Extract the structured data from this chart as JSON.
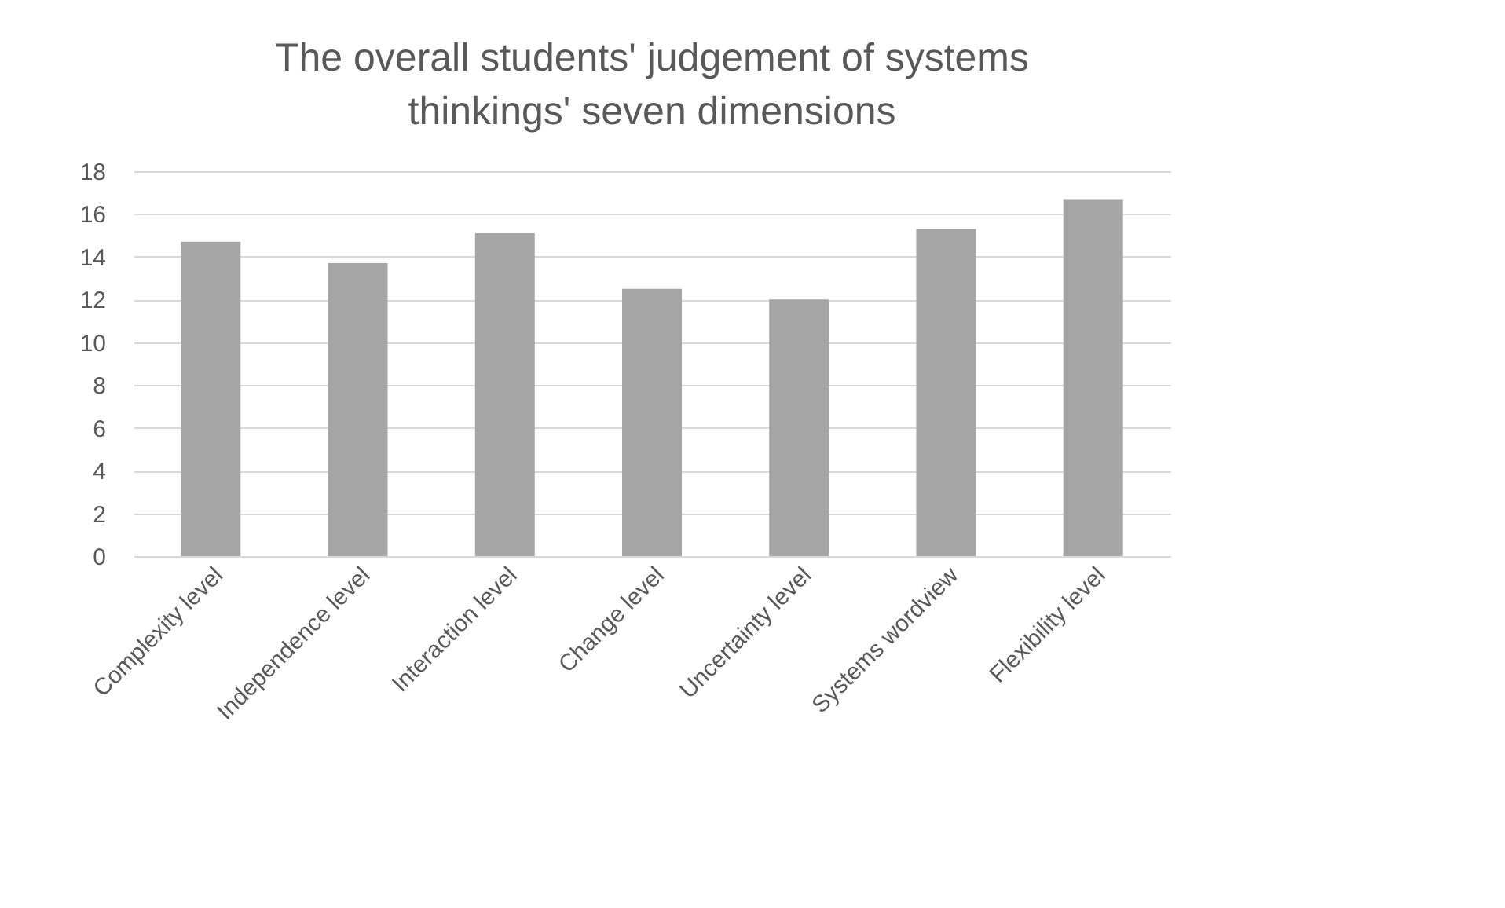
{
  "chart_data": {
    "type": "bar",
    "title": "The overall students' judgement of systems thinkings' seven dimensions",
    "categories": [
      "Complexity level",
      "Independence level",
      "Interaction level",
      "Change level",
      "Uncertainty level",
      "Systems wordview",
      "Flexibility level"
    ],
    "values": [
      14.7,
      13.7,
      15.1,
      12.5,
      12.0,
      15.3,
      16.7
    ],
    "color": "#a5a5a5",
    "ylim": [
      0,
      18
    ],
    "yticks": [
      0,
      2,
      4,
      6,
      8,
      10,
      12,
      14,
      16,
      18
    ],
    "grid": "y"
  }
}
